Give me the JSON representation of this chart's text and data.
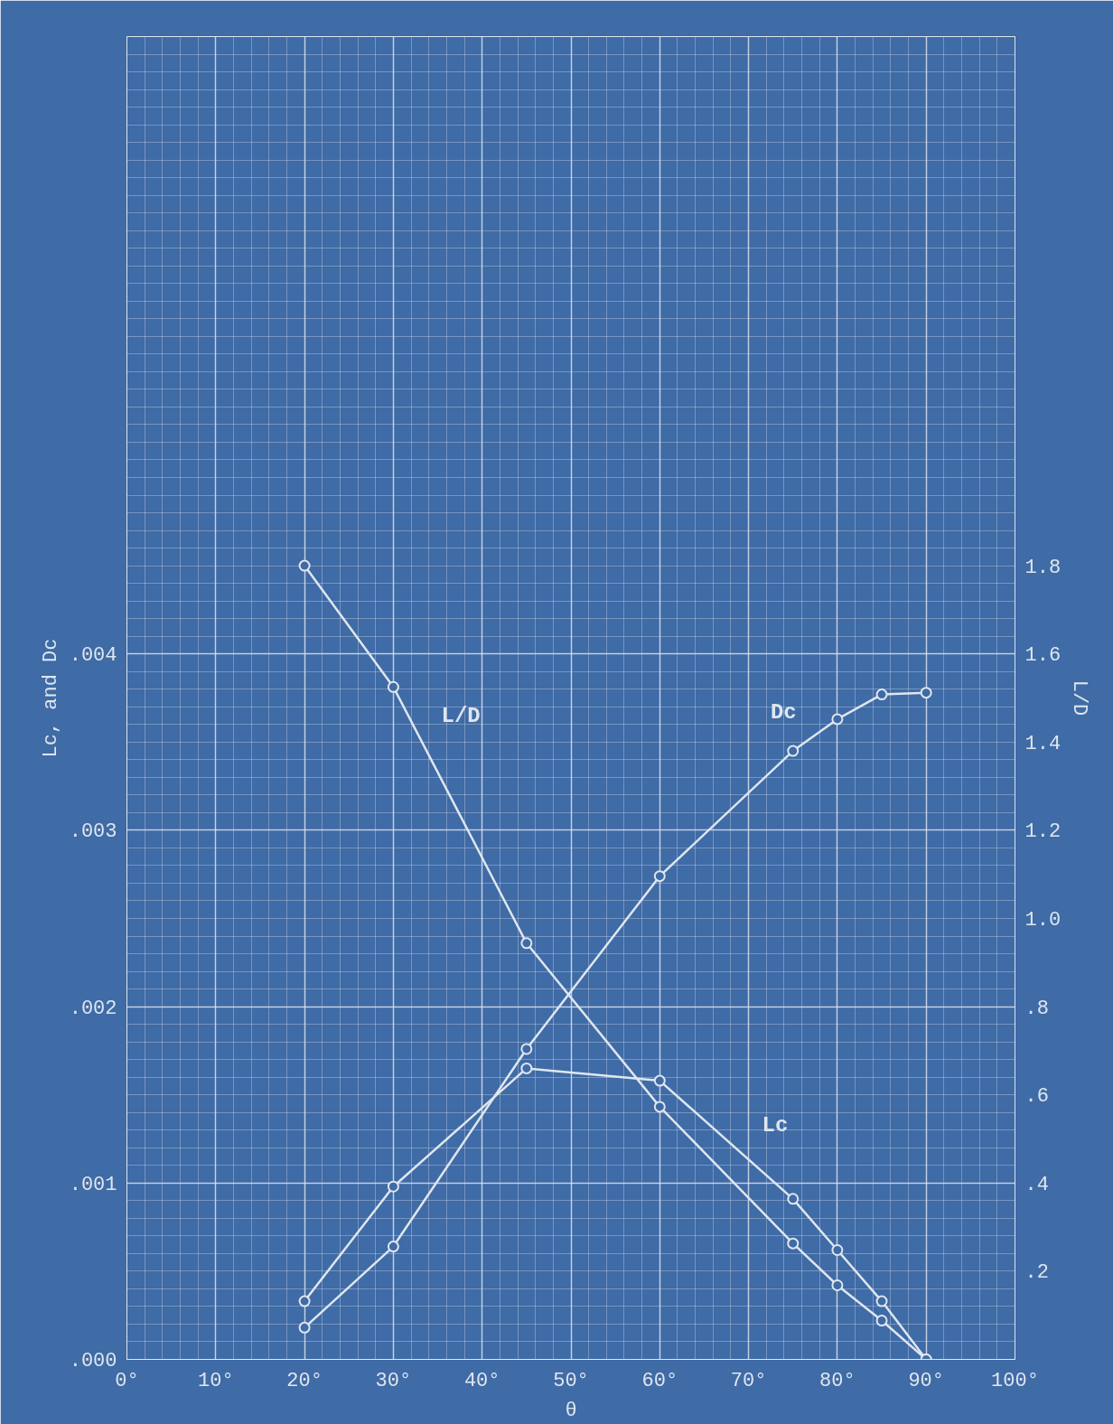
{
  "chart_data": {
    "type": "line",
    "xlabel": "θ",
    "ylabel": "Lc, and Dc",
    "y2label": "L/D",
    "x": [
      20,
      30,
      45,
      60,
      75,
      80,
      85,
      90
    ],
    "series": [
      {
        "name": "L/D",
        "color": "#dfe6ef",
        "values": [
          1.8,
          1.525,
          0.944,
          0.573,
          0.263,
          0.168,
          0.088,
          0
        ],
        "axis": "y2"
      },
      {
        "name": "Dc",
        "color": "#dfe6ef",
        "values": [
          0.00018,
          0.00064,
          0.00176,
          0.00274,
          0.00345,
          0.00363,
          0.00377,
          0.00378
        ]
      },
      {
        "name": "Lc",
        "color": "#dfe6ef",
        "values": [
          0.00033,
          0.00098,
          0.00165,
          0.00158,
          0.00091,
          0.00062,
          0.00033,
          0
        ]
      }
    ],
    "xlim": [
      0,
      100
    ],
    "xticks": [
      {
        "value": 0,
        "label": "0°"
      },
      {
        "value": 10,
        "label": "10°"
      },
      {
        "value": 20,
        "label": "20°"
      },
      {
        "value": 30,
        "label": "30°"
      },
      {
        "value": 40,
        "label": "40°"
      },
      {
        "value": 50,
        "label": "50°"
      },
      {
        "value": 60,
        "label": "60°"
      },
      {
        "value": 70,
        "label": "70°"
      },
      {
        "value": 80,
        "label": "80°"
      },
      {
        "value": 90,
        "label": "90°"
      },
      {
        "value": 100,
        "label": "100°"
      }
    ],
    "ylim": [
      0,
      0.0075
    ],
    "yticks": [
      {
        "value": 0,
        "label": ".000"
      },
      {
        "value": 0.001,
        "label": ".001"
      },
      {
        "value": 0.002,
        "label": ".002"
      },
      {
        "value": 0.003,
        "label": ".003"
      },
      {
        "value": 0.004,
        "label": ".004"
      }
    ],
    "y2lim": [
      0,
      3.0
    ],
    "y2ticks": [
      {
        "value": 0.2,
        "label": ".2"
      },
      {
        "value": 0.4,
        "label": ".4"
      },
      {
        "value": 0.6,
        "label": ".6"
      },
      {
        "value": 0.8,
        "label": ".8"
      },
      {
        "value": 1.0,
        "label": "1.0"
      },
      {
        "value": 1.2,
        "label": "1.2"
      },
      {
        "value": 1.4,
        "label": "1.4"
      },
      {
        "value": 1.6,
        "label": "1.6"
      },
      {
        "value": 1.8,
        "label": "1.8"
      }
    ],
    "grid": true,
    "marker": "circle",
    "line_style": "solid"
  }
}
